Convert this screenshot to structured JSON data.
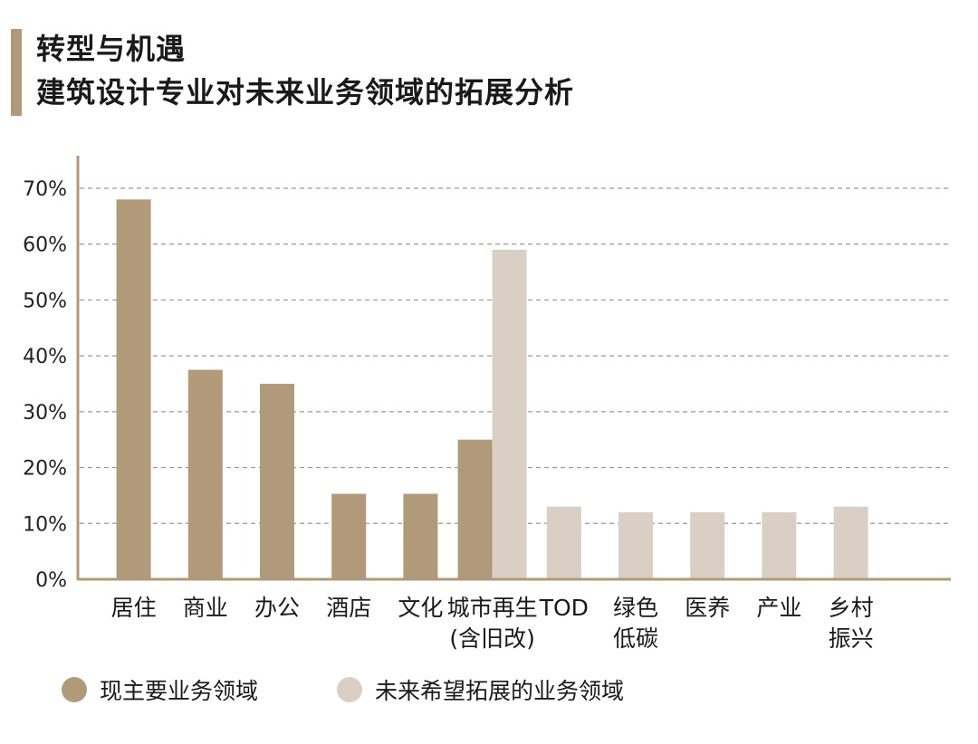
{
  "title": {
    "line1": "转型与机遇",
    "line2": "建筑设计专业对未来业务领域的拓展分析"
  },
  "legend": [
    {
      "label": "现主要业务领域",
      "color": "#b09a7a"
    },
    {
      "label": "未来希望拓展的业务领域",
      "color": "#d9cfc4"
    }
  ],
  "chart_data": {
    "type": "bar",
    "ylim": [
      0,
      70
    ],
    "yticks": [
      "0%",
      "10%",
      "20%",
      "30%",
      "40%",
      "50%",
      "60%",
      "70%"
    ],
    "categories": [
      [
        "居住"
      ],
      [
        "商业"
      ],
      [
        "办公"
      ],
      [
        "酒店"
      ],
      [
        "文化"
      ],
      [
        "城市再生",
        "(含旧改)"
      ],
      [
        "TOD"
      ],
      [
        "绿色",
        "低碳"
      ],
      [
        "医养"
      ],
      [
        "产业"
      ],
      [
        "乡村",
        "振兴"
      ]
    ],
    "series": [
      {
        "name": "现主要业务领域",
        "color": "#b09a7a",
        "values": [
          68,
          37.5,
          35,
          15.3,
          15.3,
          25,
          null,
          null,
          null,
          null,
          null
        ]
      },
      {
        "name": "未来希望拓展的业务领域",
        "color": "#d9cfc4",
        "values": [
          null,
          null,
          null,
          null,
          null,
          59,
          13,
          12,
          12,
          12,
          13
        ]
      }
    ],
    "grid": true,
    "legend_position": "bottom-left"
  }
}
